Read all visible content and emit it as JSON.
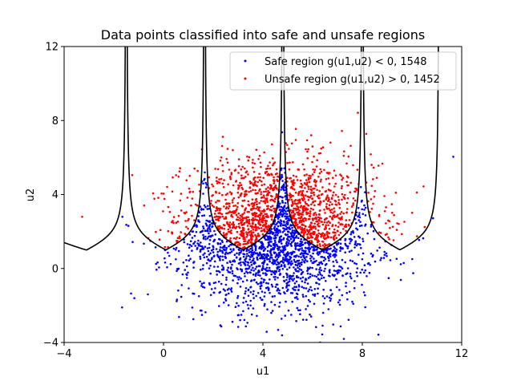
{
  "chart_data": {
    "type": "scatter",
    "title": "Data points classified into safe and unsafe regions",
    "xlabel": "u1",
    "ylabel": "u2",
    "xlim": [
      -4,
      12
    ],
    "ylim": [
      -4,
      12
    ],
    "xticks": [
      "−4",
      "0",
      "4",
      "8",
      "12"
    ],
    "yticks": [
      "−4",
      "0",
      "4",
      "8",
      "12"
    ],
    "xtick_values": [
      -4,
      0,
      4,
      8,
      12
    ],
    "ytick_values": [
      -4,
      0,
      4,
      8,
      12
    ],
    "grid": false,
    "legend_position": "top-right",
    "series": [
      {
        "name": "Safe region g(u1,u2) < 0, 1548",
        "color": "#0000ff",
        "count": 1548,
        "marker": "dot"
      },
      {
        "name": "Unsafe region g(u1,u2) > 0, 1452",
        "color": "#ff0000",
        "count": 1452,
        "marker": "dot"
      }
    ],
    "boundary": {
      "color": "#000000",
      "style": "solid",
      "description": "limit state curve g(u1,u2) = 0",
      "asymptotes_u1": [
        -1.5,
        1.65,
        4.8,
        8.0,
        11.1
      ],
      "minima": [
        [
          -3.1,
          1.0
        ],
        [
          0.1,
          1.0
        ],
        [
          3.2,
          1.0
        ],
        [
          6.4,
          1.0
        ],
        [
          9.5,
          1.0
        ]
      ]
    },
    "distribution": {
      "mean": [
        4.6,
        1.9
      ],
      "std": [
        1.95,
        1.9
      ]
    }
  }
}
